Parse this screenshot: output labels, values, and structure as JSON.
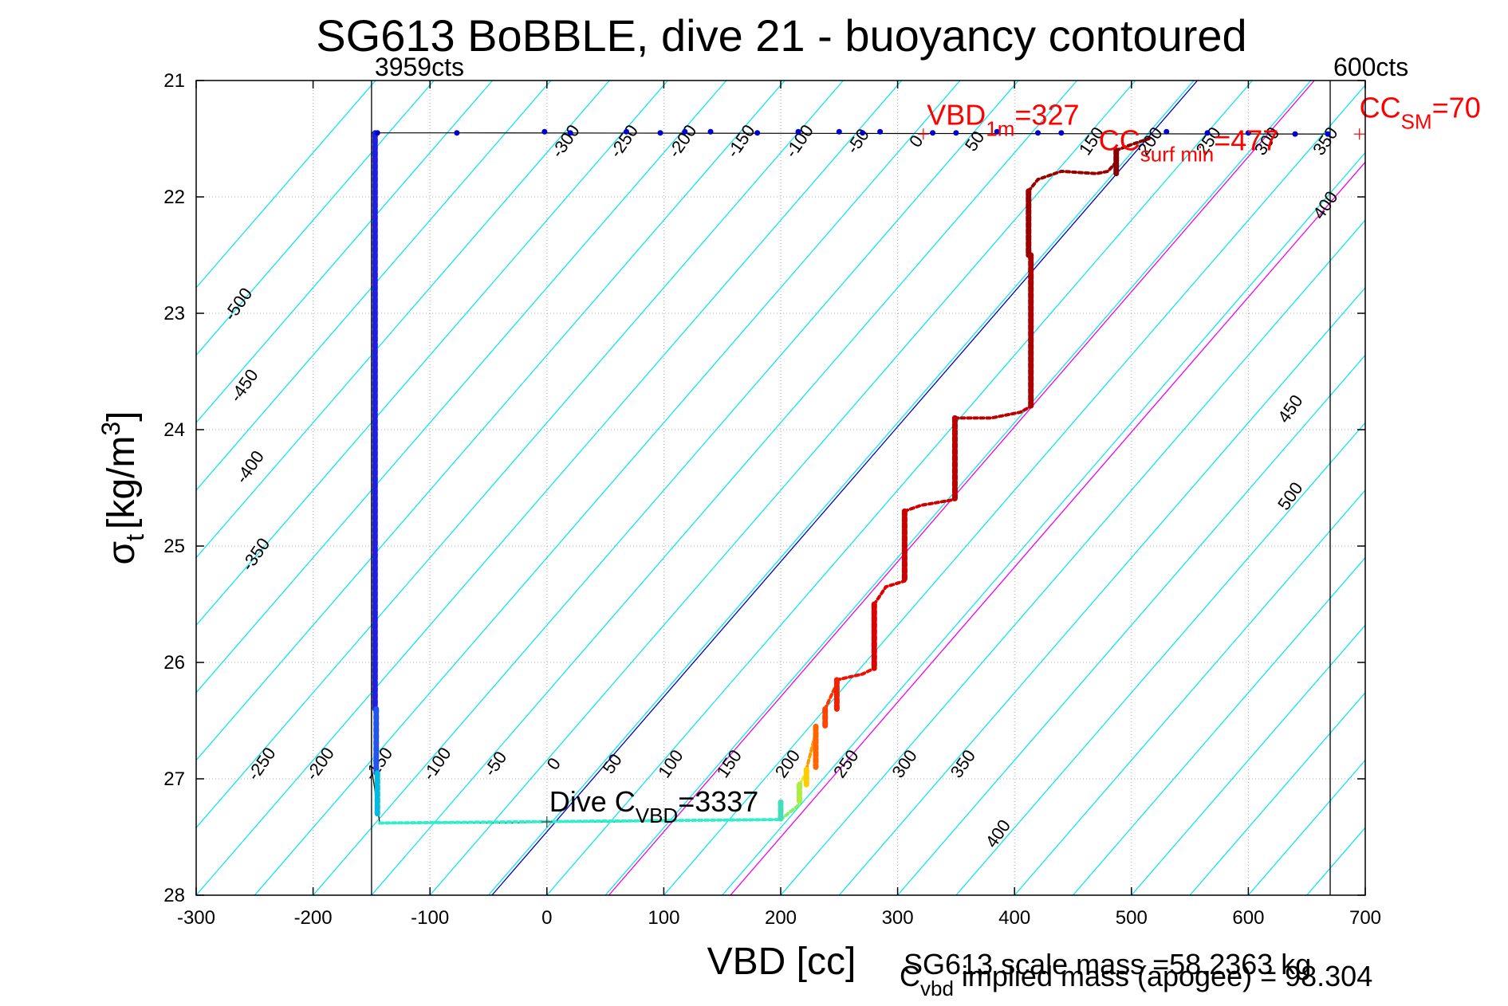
{
  "chart_data": {
    "type": "scatter",
    "title": "SG613 BoBBLE, dive 21 - buoyancy contoured",
    "xlabel": "VBD [cc]",
    "ylabel_main": "σ",
    "ylabel_sub": "t",
    "ylabel_unit_pre": "[kg/m",
    "ylabel_unit_sup": "3",
    "ylabel_unit_post": "]",
    "xlim": [
      -300,
      700
    ],
    "ylim": [
      21,
      28
    ],
    "y_reversed": true,
    "grid": true,
    "xticks": [
      -300,
      -200,
      -100,
      0,
      100,
      200,
      300,
      400,
      500,
      600,
      700
    ],
    "yticks": [
      21,
      22,
      23,
      24,
      25,
      26,
      27,
      28
    ],
    "xtick_labels": [
      "-300",
      "-200",
      "-100",
      "0",
      "100",
      "200",
      "300",
      "400",
      "500",
      "600",
      "700"
    ],
    "ytick_labels": [
      "21",
      "22",
      "23",
      "24",
      "25",
      "26",
      "27",
      "28"
    ],
    "vlines": [
      {
        "x": -150,
        "label": "3959cts",
        "color": "#000000"
      },
      {
        "x": 670,
        "label": "600cts",
        "color": "#000000"
      }
    ],
    "contour_slope": 0.0117,
    "contour_values": [
      -550,
      -500,
      -450,
      -400,
      -350,
      -300,
      -250,
      -200,
      -150,
      -100,
      -50,
      0,
      50,
      100,
      150,
      200,
      250,
      300,
      350,
      400,
      450,
      500,
      550,
      600,
      650,
      700,
      750,
      800,
      850,
      900
    ],
    "contour_color": "#00e5ee",
    "reference_lines": [
      {
        "x_at_bottom": -47,
        "color": "#0000cc"
      },
      {
        "x_at_bottom": 53,
        "color": "#ee00ee"
      },
      {
        "x_at_bottom": 157,
        "color": "#ee00ee"
      }
    ],
    "contour_labels": [
      {
        "text": "-300",
        "x": 20,
        "y": 21.55
      },
      {
        "text": "-250",
        "x": 70,
        "y": 21.55
      },
      {
        "text": "-200",
        "x": 120,
        "y": 21.55
      },
      {
        "text": "-150",
        "x": 170,
        "y": 21.55
      },
      {
        "text": "-100",
        "x": 220,
        "y": 21.55
      },
      {
        "text": "-50",
        "x": 270,
        "y": 21.55
      },
      {
        "text": "0",
        "x": 320,
        "y": 21.55
      },
      {
        "text": "50",
        "x": 370,
        "y": 21.55
      },
      {
        "text": "150",
        "x": 470,
        "y": 21.55
      },
      {
        "text": "200",
        "x": 520,
        "y": 21.55
      },
      {
        "text": "250",
        "x": 570,
        "y": 21.55
      },
      {
        "text": "300",
        "x": 620,
        "y": 21.55
      },
      {
        "text": "350",
        "x": 670,
        "y": 21.55
      },
      {
        "text": "400",
        "x": 670,
        "y": 22.1
      },
      {
        "text": "-500",
        "x": -260,
        "y": 22.95
      },
      {
        "text": "-450",
        "x": -255,
        "y": 23.65
      },
      {
        "text": "-400",
        "x": -250,
        "y": 24.35
      },
      {
        "text": "-350",
        "x": -245,
        "y": 25.1
      },
      {
        "text": "450",
        "x": 640,
        "y": 23.85
      },
      {
        "text": "500",
        "x": 640,
        "y": 24.6
      },
      {
        "text": "-250",
        "x": -240,
        "y": 26.9
      },
      {
        "text": "-200",
        "x": -190,
        "y": 26.9
      },
      {
        "text": "-150",
        "x": -140,
        "y": 26.9
      },
      {
        "text": "-100",
        "x": -90,
        "y": 26.9
      },
      {
        "text": "-50",
        "x": -40,
        "y": 26.9
      },
      {
        "text": "0",
        "x": 10,
        "y": 26.9
      },
      {
        "text": "50",
        "x": 60,
        "y": 26.9
      },
      {
        "text": "100",
        "x": 110,
        "y": 26.9
      },
      {
        "text": "150",
        "x": 160,
        "y": 26.9
      },
      {
        "text": "200",
        "x": 210,
        "y": 26.9
      },
      {
        "text": "250",
        "x": 260,
        "y": 26.9
      },
      {
        "text": "300",
        "x": 310,
        "y": 26.9
      },
      {
        "text": "350",
        "x": 360,
        "y": 26.9
      },
      {
        "text": "400",
        "x": 390,
        "y": 27.5
      }
    ],
    "dive_path": [
      [
        -77,
        21.45
      ],
      [
        -150,
        21.45
      ],
      [
        -150,
        26.9
      ],
      [
        -143,
        27.38
      ],
      [
        -30,
        27.38
      ],
      [
        0,
        27.37
      ],
      [
        60,
        27.37
      ],
      [
        100,
        27.36
      ],
      [
        200,
        27.35
      ],
      [
        200,
        27.3
      ],
      [
        200,
        27.2
      ]
    ],
    "profile_points": [
      {
        "x": -145,
        "y": 21.45,
        "c": "#0000cc"
      },
      {
        "x": -77,
        "y": 21.45,
        "c": "#0000cc"
      },
      {
        "x": -2,
        "y": 21.44,
        "c": "#0000cc"
      },
      {
        "x": 20,
        "y": 21.45,
        "c": "#0000cc"
      },
      {
        "x": 68,
        "y": 21.44,
        "c": "#0000cc"
      },
      {
        "x": 97,
        "y": 21.45,
        "c": "#0000cc"
      },
      {
        "x": 118,
        "y": 21.44,
        "c": "#0000cc"
      },
      {
        "x": 140,
        "y": 21.44,
        "c": "#0000cc"
      },
      {
        "x": 180,
        "y": 21.45,
        "c": "#0000cc"
      },
      {
        "x": 215,
        "y": 21.44,
        "c": "#0000cc"
      },
      {
        "x": 250,
        "y": 21.44,
        "c": "#0000cc"
      },
      {
        "x": 270,
        "y": 21.45,
        "c": "#0000cc"
      },
      {
        "x": 285,
        "y": 21.44,
        "c": "#0000cc"
      },
      {
        "x": 330,
        "y": 21.45,
        "c": "#0000cc"
      },
      {
        "x": 350,
        "y": 21.45,
        "c": "#0000cc"
      },
      {
        "x": 385,
        "y": 21.44,
        "c": "#0000cc"
      },
      {
        "x": 420,
        "y": 21.45,
        "c": "#0000cc"
      },
      {
        "x": 440,
        "y": 21.45,
        "c": "#0000cc"
      },
      {
        "x": 530,
        "y": 21.44,
        "c": "#0000cc"
      },
      {
        "x": 565,
        "y": 21.45,
        "c": "#0000cc"
      },
      {
        "x": 600,
        "y": 21.45,
        "c": "#0000cc"
      },
      {
        "x": 640,
        "y": 21.46,
        "c": "#0000cc"
      },
      {
        "x": 668,
        "y": 21.46,
        "c": "#0000cc"
      }
    ],
    "descent_segments": [
      {
        "x": -147,
        "y0": 21.45,
        "y1": 26.4,
        "c": "#1f1fdd"
      },
      {
        "x": -146,
        "y0": 26.4,
        "y1": 26.95,
        "c": "#2255ee"
      },
      {
        "x": -145,
        "y0": 26.95,
        "y1": 27.3,
        "c": "#00bbdd"
      },
      {
        "x": 200,
        "y0": 27.2,
        "y1": 27.35,
        "c": "#44ddbb"
      },
      {
        "x": 216,
        "y0": 27.05,
        "y1": 27.2,
        "c": "#aaee44"
      },
      {
        "x": 222,
        "y0": 26.92,
        "y1": 27.05,
        "c": "#ffcc00"
      },
      {
        "x": 230,
        "y0": 26.55,
        "y1": 26.9,
        "c": "#ff6600"
      },
      {
        "x": 238,
        "y0": 26.4,
        "y1": 26.55,
        "c": "#ff4400"
      },
      {
        "x": 248,
        "y0": 26.15,
        "y1": 26.4,
        "c": "#ee2200"
      },
      {
        "x": 280,
        "y0": 25.5,
        "y1": 26.05,
        "c": "#dd0000"
      },
      {
        "x": 306,
        "y0": 24.7,
        "y1": 25.3,
        "c": "#cc0000"
      },
      {
        "x": 349,
        "y0": 23.9,
        "y1": 24.6,
        "c": "#bb0000"
      },
      {
        "x": 414,
        "y0": 22.5,
        "y1": 23.8,
        "c": "#aa0000"
      },
      {
        "x": 412,
        "y0": 21.95,
        "y1": 22.5,
        "c": "#990000"
      },
      {
        "x": 487,
        "y0": 21.6,
        "y1": 21.8,
        "c": "#880000"
      }
    ],
    "step_traces": [
      {
        "points": [
          [
            -143,
            27.38
          ],
          [
            200,
            27.35
          ]
        ],
        "c": "#33eecc"
      },
      {
        "points": [
          [
            200,
            27.35
          ],
          [
            216,
            27.22
          ]
        ],
        "c": "#88ee66"
      },
      {
        "points": [
          [
            216,
            27.05
          ],
          [
            222,
            26.95
          ]
        ],
        "c": "#ddee22"
      },
      {
        "points": [
          [
            222,
            26.92
          ],
          [
            230,
            26.6
          ]
        ],
        "c": "#ff9900"
      },
      {
        "points": [
          [
            238,
            26.4
          ],
          [
            248,
            26.18
          ]
        ],
        "c": "#ff3300"
      },
      {
        "points": [
          [
            248,
            26.15
          ],
          [
            270,
            26.1
          ],
          [
            280,
            26.05
          ]
        ],
        "c": "#ee1100"
      },
      {
        "points": [
          [
            280,
            25.5
          ],
          [
            290,
            25.35
          ],
          [
            306,
            25.3
          ]
        ],
        "c": "#dd0000"
      },
      {
        "points": [
          [
            306,
            24.7
          ],
          [
            320,
            24.65
          ],
          [
            349,
            24.6
          ]
        ],
        "c": "#cc0000"
      },
      {
        "points": [
          [
            349,
            23.9
          ],
          [
            380,
            23.9
          ],
          [
            405,
            23.85
          ],
          [
            414,
            23.8
          ]
        ],
        "c": "#bb0000"
      },
      {
        "points": [
          [
            412,
            21.95
          ],
          [
            420,
            21.85
          ],
          [
            440,
            21.78
          ],
          [
            470,
            21.8
          ],
          [
            480,
            21.78
          ],
          [
            487,
            21.7
          ]
        ],
        "c": "#990000"
      },
      {
        "points": [
          [
            487,
            21.6
          ],
          [
            500,
            21.55
          ],
          [
            515,
            21.5
          ]
        ],
        "c": "#880000"
      }
    ],
    "annotations": [
      {
        "name": "vbd-1m",
        "main": "VBD",
        "sub": "1m",
        "value": "=327",
        "x": 325,
        "y": 21.38,
        "color": "#ff0000"
      },
      {
        "name": "cc-surf-min",
        "main": "CC",
        "sub": "surf min",
        "value": "=477",
        "x": 472,
        "y": 21.6,
        "color": "#ff0000"
      },
      {
        "name": "cc-sm",
        "main": "CC",
        "sub": "SM",
        "value": "=70",
        "x": 695,
        "y": 21.32,
        "color": "#ff0000"
      },
      {
        "name": "dive-cvbd",
        "main": "Dive C",
        "sub": "VBD",
        "value": "=3337",
        "x": 2,
        "y": 27.28,
        "color": "#000000"
      }
    ],
    "markers": [
      {
        "x": 322,
        "y": 21.46,
        "color": "#ff0000"
      },
      {
        "x": 695,
        "y": 21.46,
        "color": "#ff0000"
      },
      {
        "x": 0,
        "y": 27.37,
        "color": "#444444"
      }
    ],
    "footer_lines": [
      {
        "text": "SG613 scale mass =58.2363 kg"
      },
      {
        "main": "C",
        "sub": "vbd",
        "rest": " implied mass (apogee) = 98.304"
      }
    ]
  }
}
